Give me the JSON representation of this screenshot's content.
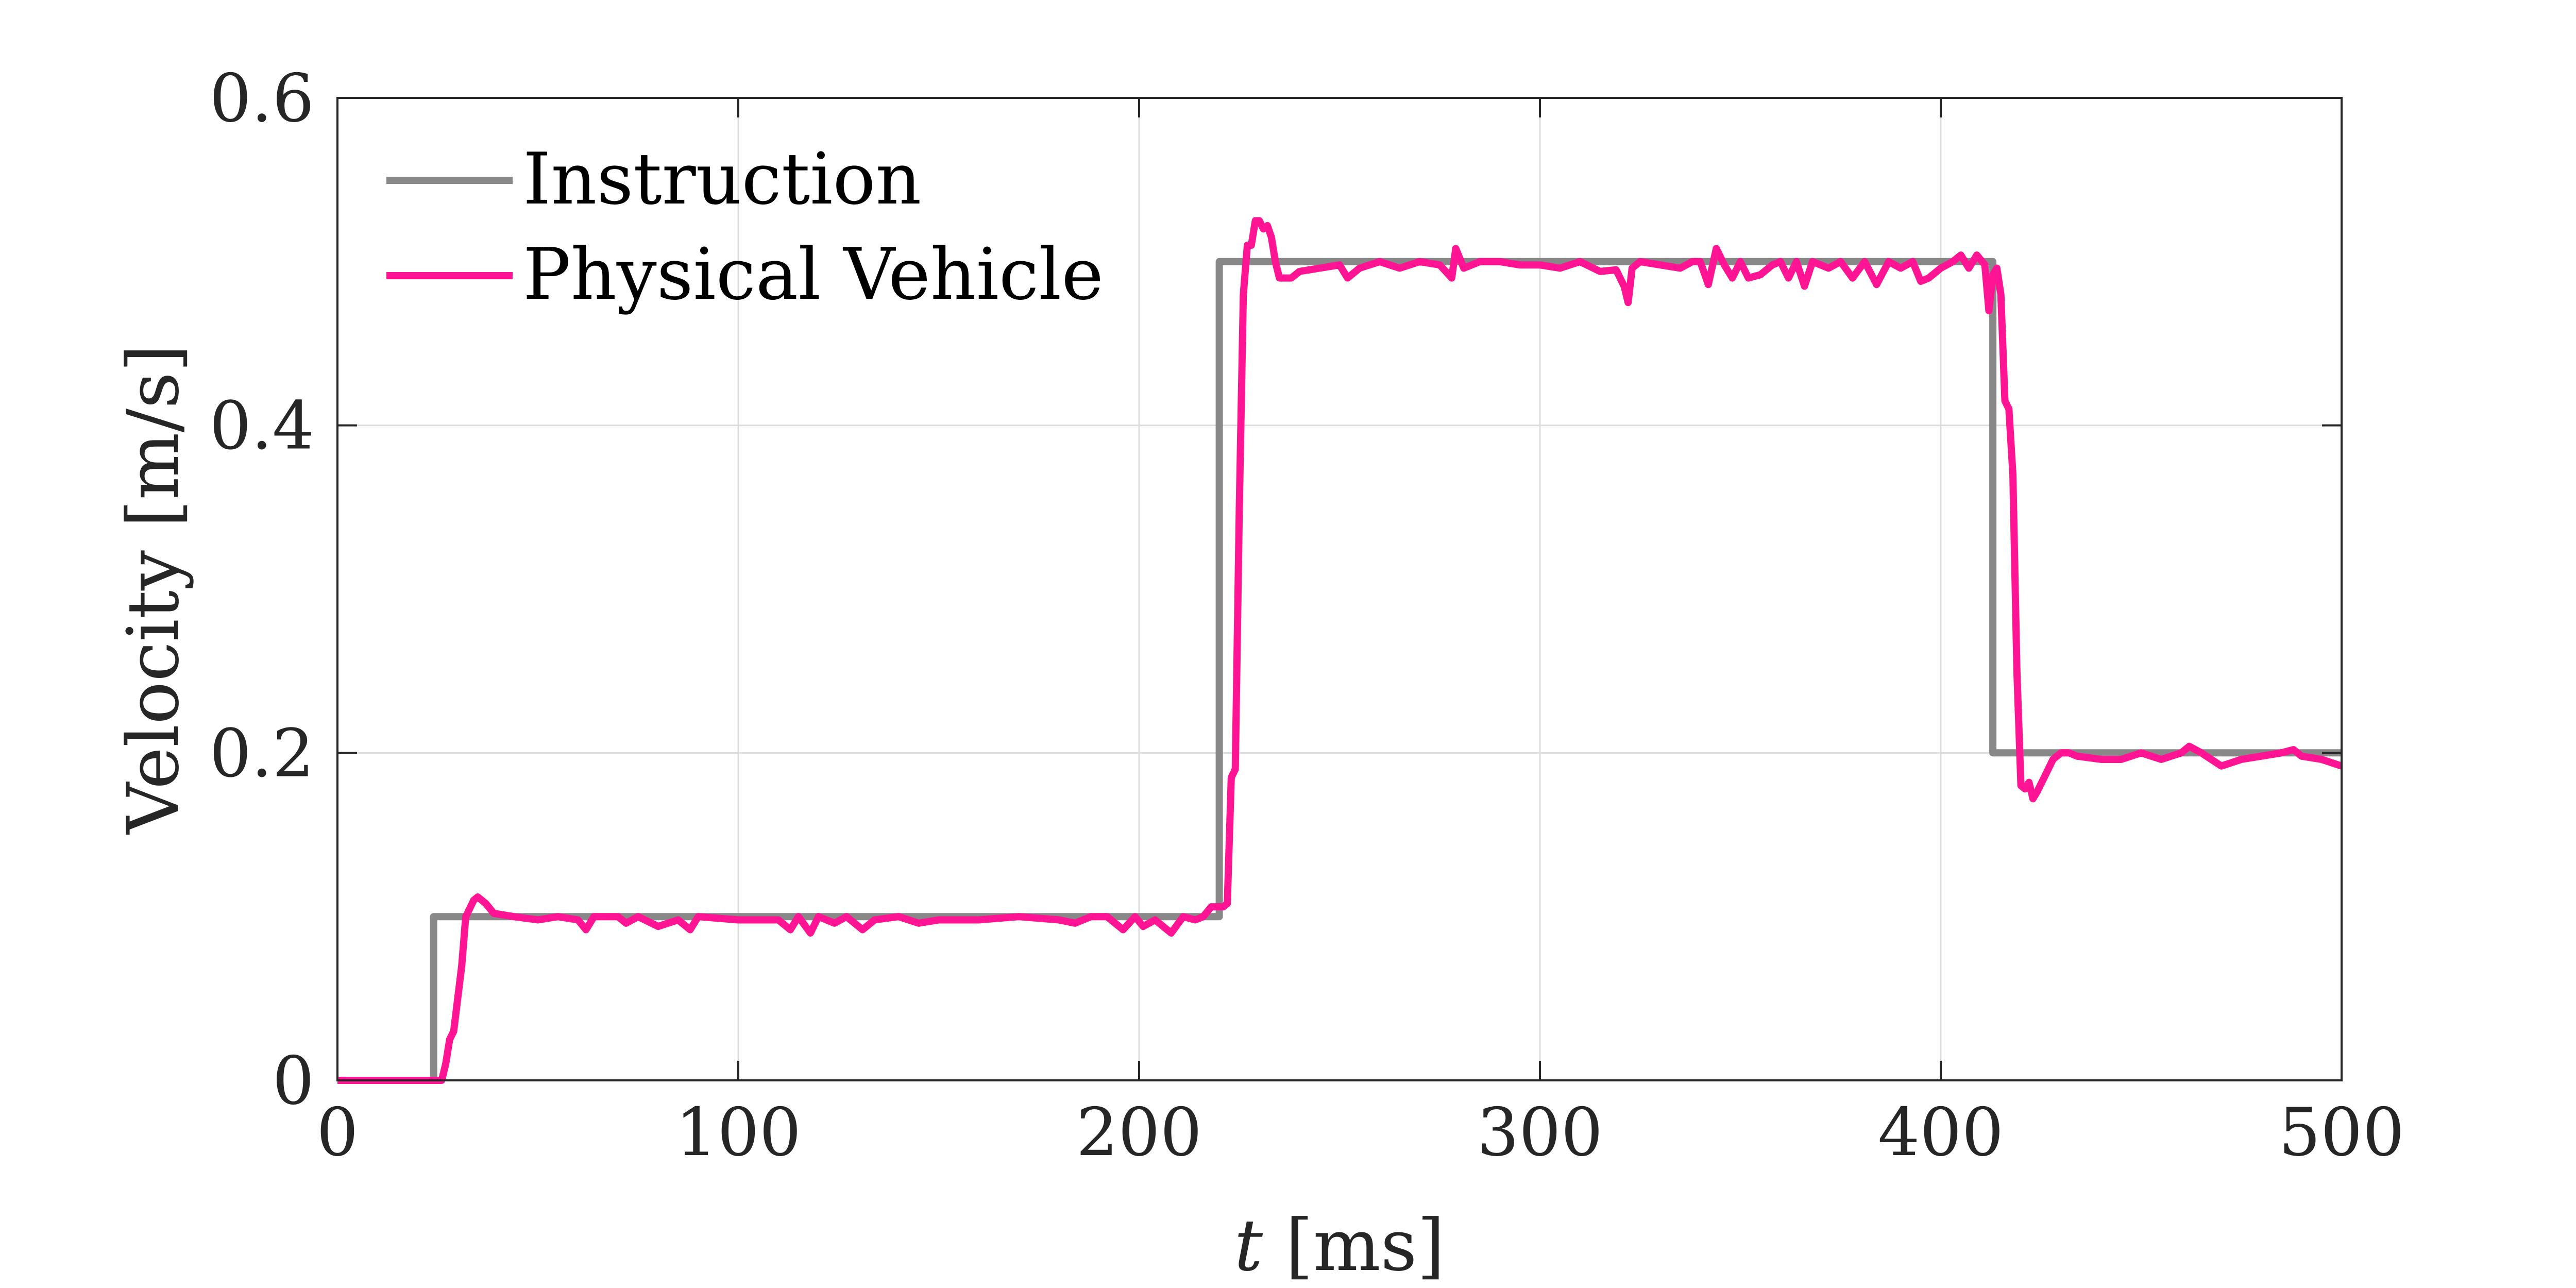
{
  "chart_data": {
    "type": "line",
    "xlabel_var": "t",
    "xlabel_unit": "[ms]",
    "ylabel": "Velocity [m/s]",
    "xlim": [
      0,
      500
    ],
    "ylim": [
      0,
      0.6
    ],
    "xticks": [
      0,
      100,
      200,
      300,
      400,
      500
    ],
    "yticks": [
      0,
      0.2,
      0.4,
      0.6
    ],
    "xtick_labels": [
      "0",
      "100",
      "200",
      "300",
      "400",
      "500"
    ],
    "ytick_labels": [
      "0",
      "0.2",
      "0.4",
      "0.6"
    ],
    "grid": true,
    "legend_position": "top-left",
    "series": [
      {
        "name": "Instruction",
        "color": "#888888",
        "points": [
          [
            0,
            0
          ],
          [
            24,
            0
          ],
          [
            24,
            0.1
          ],
          [
            220,
            0.1
          ],
          [
            220,
            0.5
          ],
          [
            413,
            0.5
          ],
          [
            413,
            0.2
          ],
          [
            500,
            0.2
          ]
        ]
      },
      {
        "name": "Physical Vehicle",
        "color": "#ff1493",
        "points": [
          [
            0,
            0
          ],
          [
            26,
            0
          ],
          [
            27,
            0.01
          ],
          [
            28,
            0.025
          ],
          [
            29,
            0.03
          ],
          [
            31,
            0.07
          ],
          [
            32,
            0.1
          ],
          [
            34,
            0.11
          ],
          [
            35,
            0.112
          ],
          [
            37,
            0.108
          ],
          [
            39,
            0.102
          ],
          [
            44,
            0.1
          ],
          [
            50,
            0.098
          ],
          [
            55,
            0.1
          ],
          [
            60,
            0.098
          ],
          [
            62,
            0.092
          ],
          [
            64,
            0.1
          ],
          [
            70,
            0.1
          ],
          [
            72,
            0.096
          ],
          [
            75,
            0.1
          ],
          [
            80,
            0.094
          ],
          [
            85,
            0.098
          ],
          [
            88,
            0.092
          ],
          [
            90,
            0.1
          ],
          [
            100,
            0.098
          ],
          [
            110,
            0.098
          ],
          [
            113,
            0.092
          ],
          [
            115,
            0.1
          ],
          [
            118,
            0.09
          ],
          [
            120,
            0.1
          ],
          [
            124,
            0.096
          ],
          [
            127,
            0.1
          ],
          [
            131,
            0.092
          ],
          [
            134,
            0.098
          ],
          [
            140,
            0.1
          ],
          [
            145,
            0.096
          ],
          [
            150,
            0.098
          ],
          [
            160,
            0.098
          ],
          [
            170,
            0.1
          ],
          [
            180,
            0.098
          ],
          [
            184,
            0.096
          ],
          [
            188,
            0.1
          ],
          [
            192,
            0.1
          ],
          [
            196,
            0.092
          ],
          [
            199,
            0.1
          ],
          [
            201,
            0.094
          ],
          [
            204,
            0.098
          ],
          [
            208,
            0.09
          ],
          [
            211,
            0.1
          ],
          [
            214,
            0.098
          ],
          [
            216,
            0.1
          ],
          [
            218,
            0.106
          ],
          [
            221,
            0.106
          ],
          [
            222,
            0.108
          ],
          [
            223,
            0.185
          ],
          [
            224,
            0.19
          ],
          [
            225,
            0.35
          ],
          [
            226,
            0.48
          ],
          [
            227,
            0.51
          ],
          [
            228,
            0.51
          ],
          [
            229,
            0.525
          ],
          [
            230,
            0.525
          ],
          [
            231,
            0.52
          ],
          [
            232,
            0.522
          ],
          [
            233,
            0.515
          ],
          [
            234,
            0.5
          ],
          [
            235,
            0.49
          ],
          [
            238,
            0.49
          ],
          [
            240,
            0.494
          ],
          [
            245,
            0.496
          ],
          [
            250,
            0.498
          ],
          [
            252,
            0.49
          ],
          [
            255,
            0.496
          ],
          [
            260,
            0.5
          ],
          [
            265,
            0.496
          ],
          [
            270,
            0.5
          ],
          [
            275,
            0.498
          ],
          [
            278,
            0.49
          ],
          [
            279,
            0.508
          ],
          [
            281,
            0.496
          ],
          [
            285,
            0.5
          ],
          [
            290,
            0.5
          ],
          [
            295,
            0.498
          ],
          [
            300,
            0.498
          ],
          [
            305,
            0.496
          ],
          [
            310,
            0.5
          ],
          [
            315,
            0.494
          ],
          [
            319,
            0.495
          ],
          [
            321,
            0.485
          ],
          [
            322,
            0.475
          ],
          [
            323,
            0.496
          ],
          [
            325,
            0.5
          ],
          [
            330,
            0.498
          ],
          [
            335,
            0.496
          ],
          [
            338,
            0.5
          ],
          [
            340,
            0.5
          ],
          [
            342,
            0.486
          ],
          [
            344,
            0.508
          ],
          [
            346,
            0.498
          ],
          [
            348,
            0.49
          ],
          [
            350,
            0.5
          ],
          [
            352,
            0.49
          ],
          [
            355,
            0.492
          ],
          [
            358,
            0.498
          ],
          [
            360,
            0.5
          ],
          [
            362,
            0.49
          ],
          [
            364,
            0.5
          ],
          [
            366,
            0.485
          ],
          [
            368,
            0.5
          ],
          [
            372,
            0.496
          ],
          [
            375,
            0.5
          ],
          [
            378,
            0.49
          ],
          [
            381,
            0.5
          ],
          [
            384,
            0.486
          ],
          [
            387,
            0.5
          ],
          [
            390,
            0.496
          ],
          [
            393,
            0.5
          ],
          [
            395,
            0.488
          ],
          [
            397,
            0.49
          ],
          [
            400,
            0.496
          ],
          [
            403,
            0.5
          ],
          [
            405,
            0.504
          ],
          [
            407,
            0.496
          ],
          [
            409,
            0.504
          ],
          [
            411,
            0.498
          ],
          [
            412,
            0.47
          ],
          [
            413,
            0.492
          ],
          [
            414,
            0.496
          ],
          [
            415,
            0.48
          ],
          [
            416,
            0.415
          ],
          [
            417,
            0.41
          ],
          [
            418,
            0.37
          ],
          [
            419,
            0.25
          ],
          [
            420,
            0.18
          ],
          [
            421,
            0.178
          ],
          [
            422,
            0.182
          ],
          [
            423,
            0.172
          ],
          [
            424,
            0.176
          ],
          [
            426,
            0.186
          ],
          [
            428,
            0.196
          ],
          [
            430,
            0.2
          ],
          [
            432,
            0.2
          ],
          [
            434,
            0.198
          ],
          [
            440,
            0.196
          ],
          [
            445,
            0.196
          ],
          [
            450,
            0.2
          ],
          [
            455,
            0.196
          ],
          [
            460,
            0.2
          ],
          [
            462,
            0.204
          ],
          [
            465,
            0.2
          ],
          [
            470,
            0.192
          ],
          [
            475,
            0.196
          ],
          [
            480,
            0.198
          ],
          [
            485,
            0.2
          ],
          [
            488,
            0.202
          ],
          [
            490,
            0.198
          ],
          [
            495,
            0.196
          ],
          [
            500,
            0.192
          ]
        ]
      }
    ]
  }
}
